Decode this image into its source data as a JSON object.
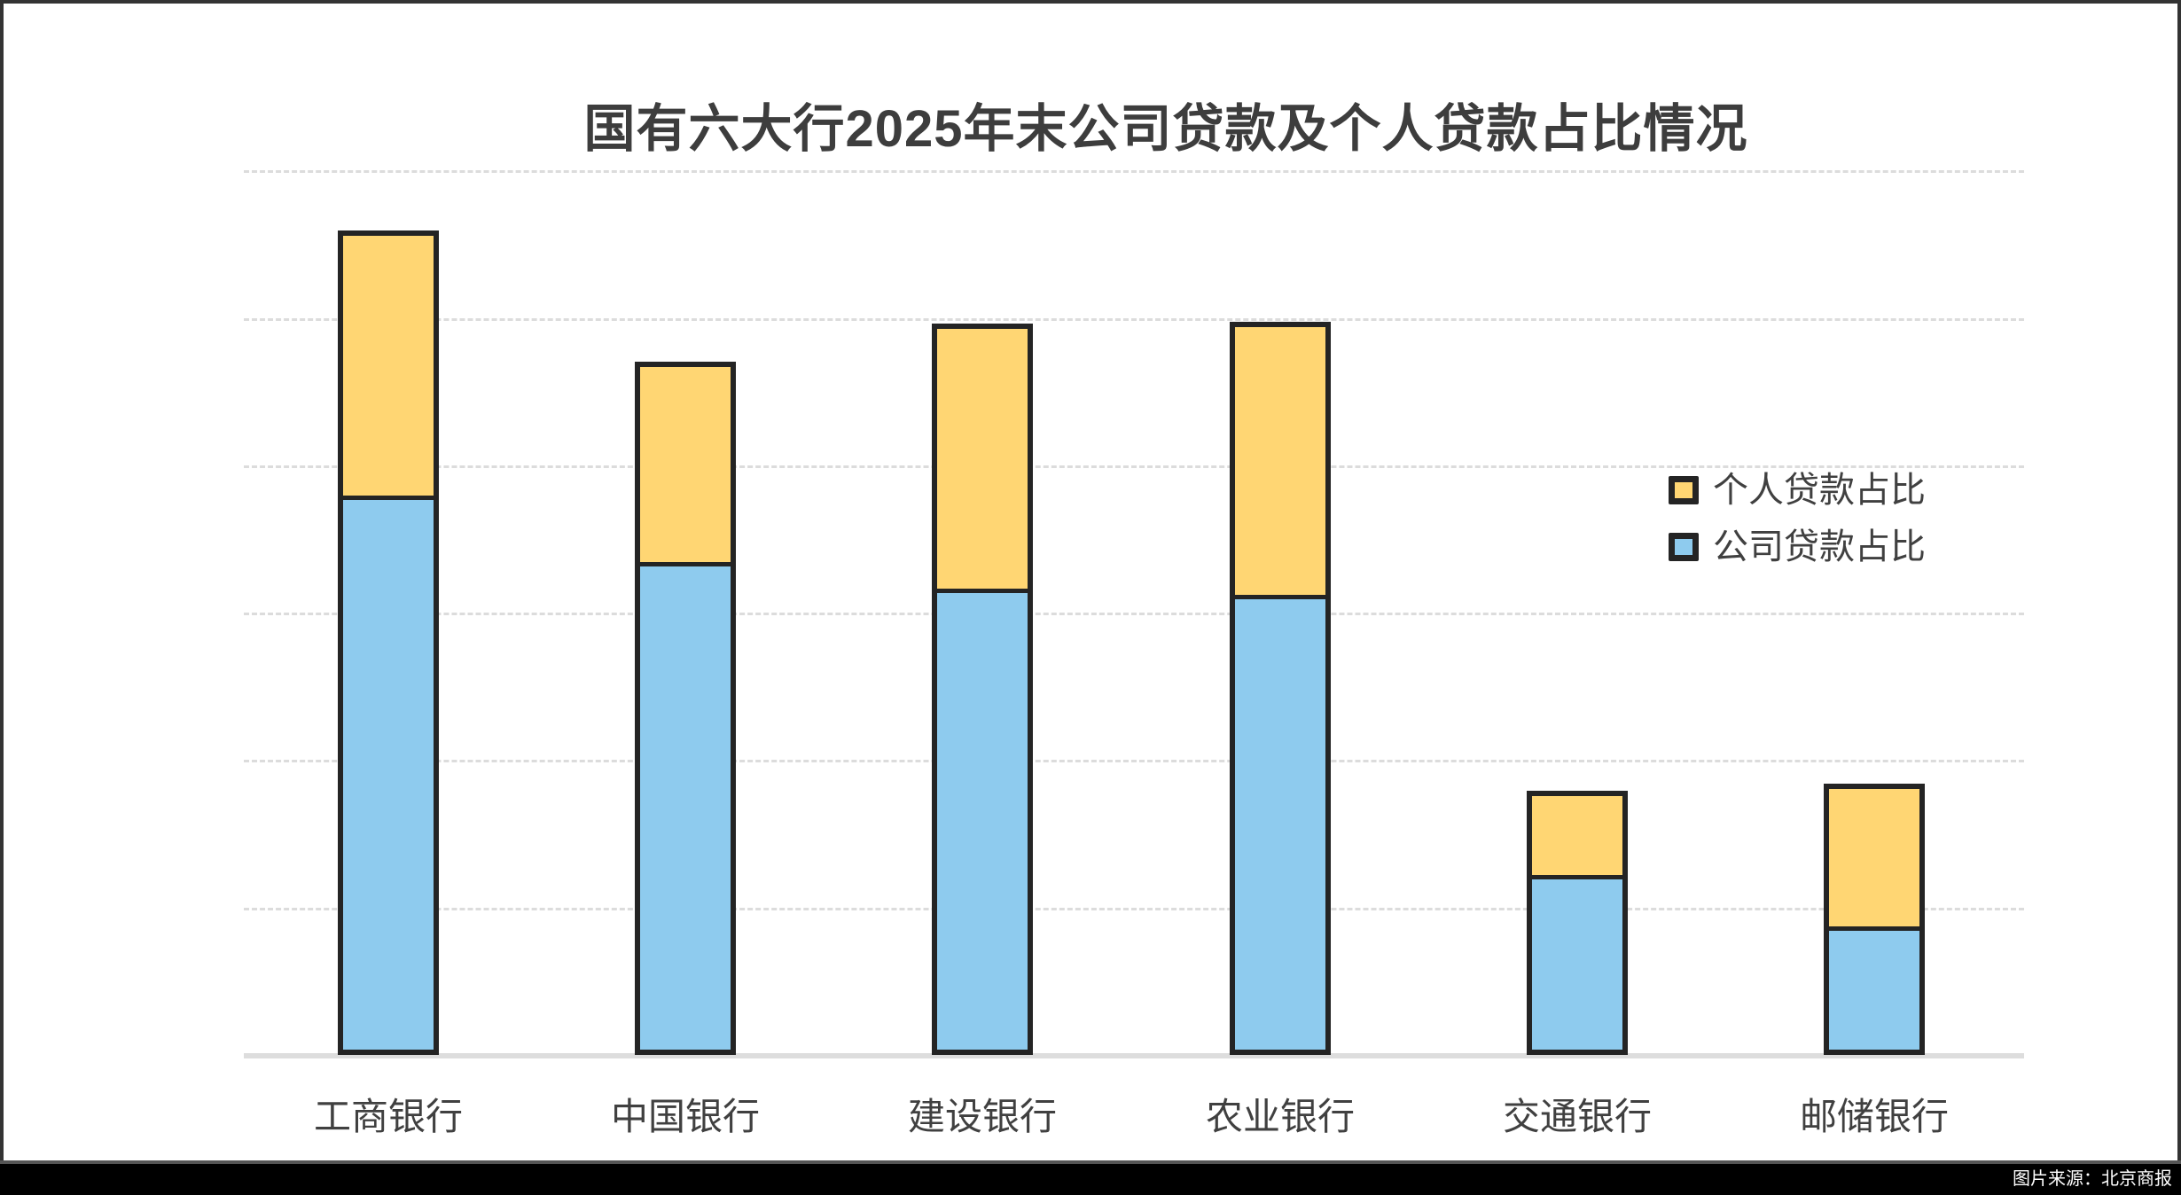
{
  "page": {
    "background": "#ffffff",
    "frame_color": "#333333",
    "footer_bar_color": "#000000"
  },
  "source_note": {
    "text": "图片来源：北京商报",
    "color": "#ffffff"
  },
  "chart_data": {
    "type": "bar",
    "stacked": true,
    "title": "国有六大行2025年末公司贷款及个人贷款占比情况",
    "categories": [
      "工商银行",
      "中国银行",
      "建设银行",
      "农业银行",
      "交通银行",
      "邮储银行"
    ],
    "series": [
      {
        "name": "公司贷款占比",
        "color": "#8ecbee",
        "values": [
          37.6,
          33.1,
          31.3,
          30.9,
          11.9,
          8.4
        ]
      },
      {
        "name": "个人贷款占比",
        "color": "#ffd673",
        "values": [
          18.3,
          13.9,
          18.3,
          18.8,
          6.0,
          10.0
        ]
      }
    ],
    "totals": [
      55.9,
      47.0,
      49.6,
      49.7,
      17.9,
      18.4
    ],
    "legend": [
      {
        "label": "个人贷款占比",
        "color": "#ffd673"
      },
      {
        "label": "公司贷款占比",
        "color": "#8ecbee"
      }
    ],
    "y_axis": {
      "min": 0,
      "max": 60.7,
      "gridline_interval": 10,
      "tick_labels_visible": false,
      "note": "axis values not labeled in source image; values estimated assuming one dashed gridline interval = 10"
    },
    "grid": "horizontal dashed, 6 lines",
    "legend_position": "right-middle",
    "bar_border_color": "#242424",
    "gridline_color": "#dcdcdc",
    "baseline_color": "#dddddd",
    "title_color": "#3d3d3d",
    "label_color": "#404040"
  }
}
